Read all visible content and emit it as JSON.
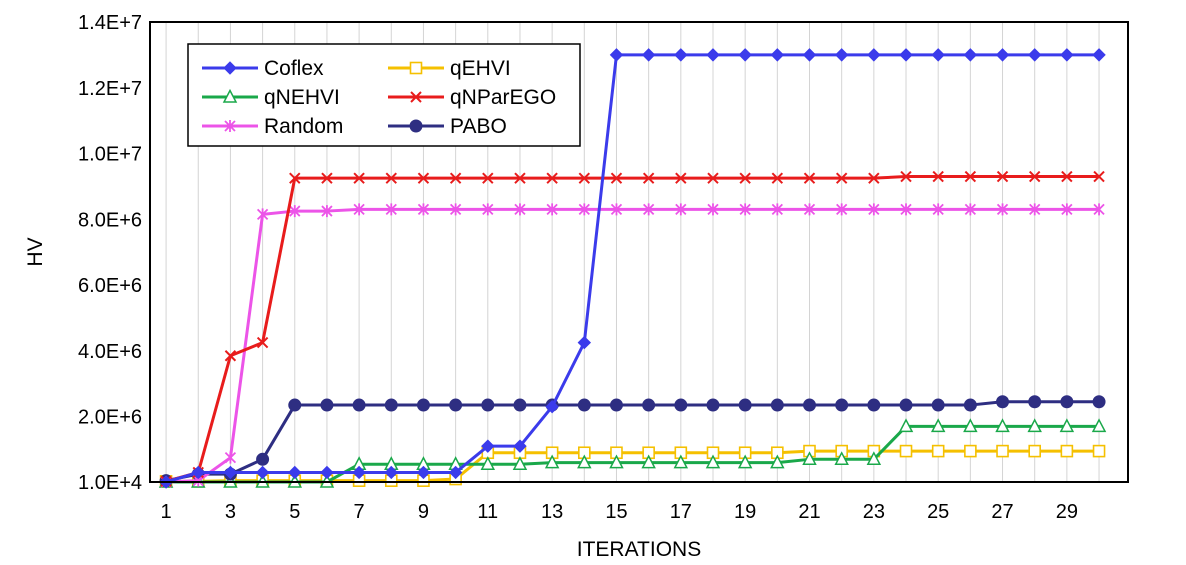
{
  "chart_data": {
    "type": "line",
    "xlabel": "ITERATIONS",
    "ylabel": "HV",
    "xlim": [
      0.5,
      30.9
    ],
    "ylim": [
      10000,
      14000000
    ],
    "grid": "vertical",
    "legend_position": "top-left",
    "x_tick_labels": [
      "1",
      "3",
      "5",
      "7",
      "9",
      "11",
      "13",
      "15",
      "17",
      "19",
      "21",
      "23",
      "25",
      "27",
      "29"
    ],
    "y_tick_labels": [
      "1.0E+4",
      "2.0E+6",
      "4.0E+6",
      "6.0E+6",
      "8.0E+6",
      "1.0E+7",
      "1.2E+7",
      "1.4E+7"
    ],
    "x": [
      1,
      2,
      3,
      4,
      5,
      6,
      7,
      8,
      9,
      10,
      11,
      12,
      13,
      14,
      15,
      16,
      17,
      18,
      19,
      20,
      21,
      22,
      23,
      24,
      25,
      26,
      27,
      28,
      29,
      30
    ],
    "series": [
      {
        "name": "Coflex",
        "color": "#3b3beb",
        "marker": "diamond",
        "values": [
          10000,
          300000,
          300000,
          300000,
          300000,
          300000,
          300000,
          300000,
          300000,
          300000,
          1100000,
          1100000,
          2300000,
          4250000,
          13000000,
          13000000,
          13000000,
          13000000,
          13000000,
          13000000,
          13000000,
          13000000,
          13000000,
          13000000,
          13000000,
          13000000,
          13000000,
          13000000,
          13000000,
          13000000
        ]
      },
      {
        "name": "qEHVI",
        "color": "#f5c000",
        "marker": "open-square",
        "values": [
          30000,
          30000,
          50000,
          50000,
          50000,
          50000,
          50000,
          50000,
          50000,
          100000,
          900000,
          900000,
          900000,
          900000,
          900000,
          900000,
          900000,
          900000,
          900000,
          900000,
          950000,
          950000,
          950000,
          950000,
          950000,
          950000,
          950000,
          950000,
          950000,
          950000
        ]
      },
      {
        "name": "qNEHVI",
        "color": "#1aa84a",
        "marker": "open-triangle",
        "values": [
          10000,
          10000,
          10000,
          10000,
          10000,
          10000,
          550000,
          550000,
          550000,
          550000,
          550000,
          550000,
          600000,
          600000,
          600000,
          600000,
          600000,
          600000,
          600000,
          600000,
          700000,
          700000,
          700000,
          1700000,
          1700000,
          1700000,
          1700000,
          1700000,
          1700000,
          1700000
        ]
      },
      {
        "name": "qNParEGO",
        "color": "#e81c1c",
        "marker": "x",
        "values": [
          30000,
          300000,
          3850000,
          4250000,
          9250000,
          9250000,
          9250000,
          9250000,
          9250000,
          9250000,
          9250000,
          9250000,
          9250000,
          9250000,
          9250000,
          9250000,
          9250000,
          9250000,
          9250000,
          9250000,
          9250000,
          9250000,
          9250000,
          9300000,
          9300000,
          9300000,
          9300000,
          9300000,
          9300000,
          9300000
        ]
      },
      {
        "name": "Random",
        "color": "#ec54e8",
        "marker": "asterisk",
        "values": [
          10000,
          50000,
          750000,
          8150000,
          8250000,
          8250000,
          8300000,
          8300000,
          8300000,
          8300000,
          8300000,
          8300000,
          8300000,
          8300000,
          8300000,
          8300000,
          8300000,
          8300000,
          8300000,
          8300000,
          8300000,
          8300000,
          8300000,
          8300000,
          8300000,
          8300000,
          8300000,
          8300000,
          8300000,
          8300000
        ]
      },
      {
        "name": "PABO",
        "color": "#2e2e82",
        "marker": "circle",
        "values": [
          50000,
          250000,
          250000,
          700000,
          2350000,
          2350000,
          2350000,
          2350000,
          2350000,
          2350000,
          2350000,
          2350000,
          2350000,
          2350000,
          2350000,
          2350000,
          2350000,
          2350000,
          2350000,
          2350000,
          2350000,
          2350000,
          2350000,
          2350000,
          2350000,
          2350000,
          2450000,
          2450000,
          2450000,
          2450000
        ]
      }
    ]
  }
}
